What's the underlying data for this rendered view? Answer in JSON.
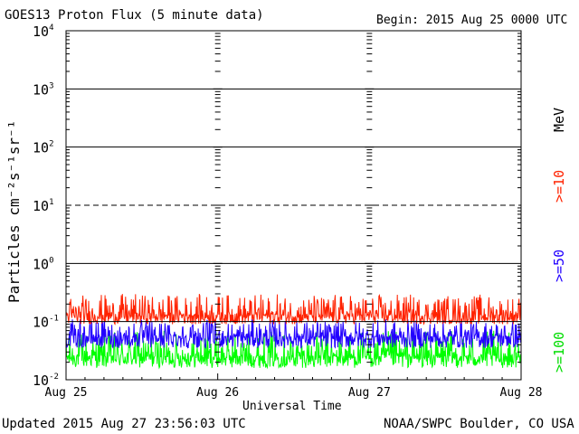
{
  "header": {
    "title": "GOES13 Proton Flux (5 minute data)",
    "begin": "Begin: 2015 Aug 25 0000 UTC"
  },
  "footer": {
    "updated": "Updated 2015 Aug 27 23:56:03 UTC",
    "credit": "NOAA/SWPC Boulder, CO USA"
  },
  "chart_data": {
    "type": "line",
    "title": "GOES13 Proton Flux (5 minute data)",
    "xlabel": "Universal Time",
    "ylabel": "Particles cm⁻²s⁻¹sr⁻¹",
    "y_scale": "log",
    "ylim": [
      0.01,
      10000
    ],
    "y_tick_labels": [
      {
        "base": "10",
        "exp": "4"
      },
      {
        "base": "10",
        "exp": "3"
      },
      {
        "base": "10",
        "exp": "2"
      },
      {
        "base": "10",
        "exp": "1"
      },
      {
        "base": "10",
        "exp": "0"
      },
      {
        "base": "10",
        "exp": "-1"
      },
      {
        "base": "10",
        "exp": "-2"
      }
    ],
    "y_tick_values": [
      10000,
      1000,
      100,
      10,
      1,
      0.1,
      0.01
    ],
    "x_tick_labels": [
      "Aug 25",
      "Aug 26",
      "Aug 27",
      "Aug 28"
    ],
    "x_range_days": [
      0,
      3
    ],
    "thresholds": [
      {
        "value": 10,
        "style": "dashed"
      },
      {
        "value": 1,
        "style": "solid"
      }
    ],
    "legend_unit": "MeV",
    "series": [
      {
        "name": ">=10",
        "color": "#ff2200",
        "typical": 0.13,
        "low": 0.09,
        "high": 0.3
      },
      {
        "name": ">=50",
        "color": "#2200ff",
        "typical": 0.055,
        "low": 0.035,
        "high": 0.11
      },
      {
        "name": ">=100",
        "color": "#00ff00",
        "typical": 0.025,
        "low": 0.016,
        "high": 0.07
      }
    ]
  }
}
